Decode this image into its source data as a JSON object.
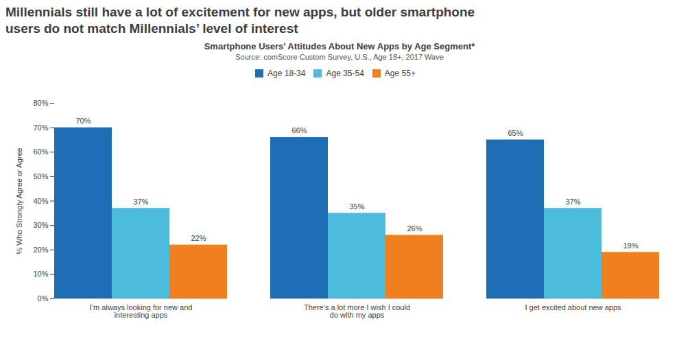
{
  "chart_data": {
    "type": "bar",
    "title": "Millennials still have a lot of excitement for new apps, but older smartphone\nusers do not match Millennials’ level of interest",
    "subtitle": "Smartphone Users’ Attitudes About New Apps by Age Segment*",
    "source": "Source: comScore Custom Survey, U.S., Age 18+, 2017 Wave",
    "categories": [
      "I’m always looking for new and\ninteresting apps",
      "There’s a lot more I wish I could\ndo with my apps",
      "I get excited about new apps"
    ],
    "series": [
      {
        "name": "Age 18-34",
        "color": "#1f6db5",
        "values": [
          70,
          66,
          65
        ],
        "value_labels": [
          "70%",
          "66%",
          "65%"
        ]
      },
      {
        "name": "Age 35-54",
        "color": "#4bbcdb",
        "values": [
          37,
          35,
          37
        ],
        "value_labels": [
          "37%",
          "35%",
          "37%"
        ]
      },
      {
        "name": "Age 55+",
        "color": "#f07f1e",
        "values": [
          22,
          26,
          19
        ],
        "value_labels": [
          "22%",
          "26%",
          "19%"
        ]
      }
    ],
    "ylabel": "% Who Strongly Agree or Agree",
    "ylim": [
      0,
      80
    ],
    "yticks": [
      {
        "value": 0,
        "label": "0%"
      },
      {
        "value": 10,
        "label": "10%"
      },
      {
        "value": 20,
        "label": "20%"
      },
      {
        "value": 30,
        "label": "30%"
      },
      {
        "value": 40,
        "label": "40%"
      },
      {
        "value": 50,
        "label": "50%"
      },
      {
        "value": 60,
        "label": "60%"
      },
      {
        "value": 70,
        "label": "70%"
      },
      {
        "value": 80,
        "label": "80%"
      }
    ],
    "data_labels": true,
    "legend": "top",
    "grid": false
  }
}
